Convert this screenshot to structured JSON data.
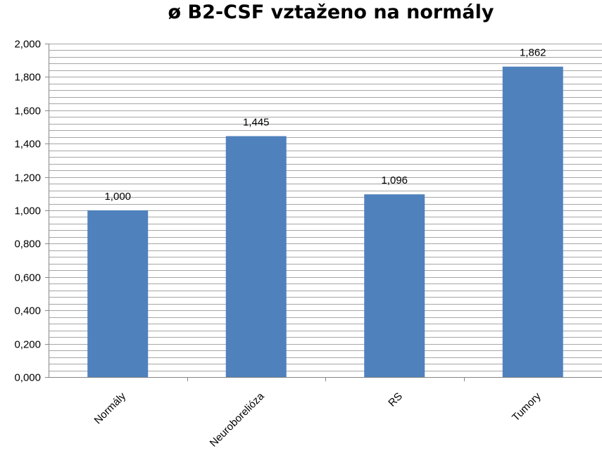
{
  "chart_data": {
    "type": "bar",
    "title": "ø B2-CSF vztaženo na normály",
    "xlabel": "",
    "ylabel": "",
    "categories": [
      "Normály",
      "Neuroborelióza",
      "RS",
      "Tumory"
    ],
    "values": [
      1.0,
      1.445,
      1.096,
      1.862
    ],
    "data_labels": [
      "1,000",
      "1,445",
      "1,096",
      "1,862"
    ],
    "ylim": [
      0,
      2.0
    ],
    "y_ticks": [
      "0,000",
      "0,200",
      "0,400",
      "0,600",
      "0,800",
      "1,000",
      "1,200",
      "1,400",
      "1,600",
      "1,800",
      "2,000"
    ],
    "grid": true,
    "bar_color": "#4F81BD",
    "grid_color": "#A6A6A6",
    "legend": "none"
  }
}
